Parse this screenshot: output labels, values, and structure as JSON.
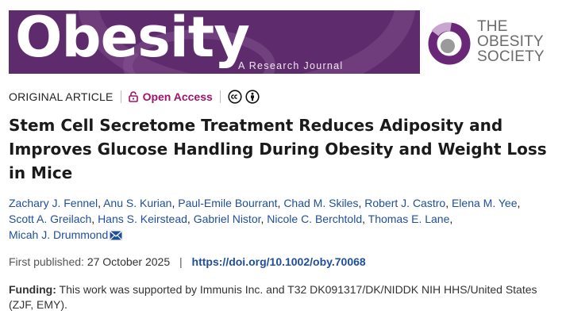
{
  "journal": {
    "name": "Obesity",
    "subtitle": "A Research Journal",
    "brand_color": "#5e2c6c"
  },
  "society": {
    "line1": "THE",
    "line2": "OBESITY",
    "line3": "SOCIETY",
    "ring_color": "#6b2777"
  },
  "article": {
    "type": "ORIGINAL ARTICLE",
    "access_label": "Open Access",
    "access_icon": "lock-open-icon",
    "license_icons": [
      "cc-icon",
      "attribution-icon"
    ],
    "title": "Stem Cell Secretome Treatment Reduces Adiposity and Improves Glucose Handling During Obesity and Weight Loss in Mice"
  },
  "authors": [
    "Zachary J. Fennel",
    "Anu S. Kurian",
    "Paul-Emile Bourrant",
    "Chad M. Skiles",
    "Robert J. Castro",
    "Elena M. Yee",
    "Scott A. Greilach",
    "Hans S. Keirstead",
    "Gabriel Nistor",
    "Nicole C. Berchtold",
    "Thomas E. Lane",
    "Micah J. Drummond"
  ],
  "corresponding_icon": "mail-icon",
  "publication": {
    "label": "First published:",
    "date": "27 October 2025",
    "separator": "|",
    "doi": "https://doi.org/10.1002/oby.70068"
  },
  "funding": {
    "label": "Funding:",
    "text": "This work was supported by Immunis Inc. and T32 DK091317/DK/NIDDK NIH HHS/United States (ZJF, EMY)."
  },
  "colors": {
    "link": "#1f4f99",
    "open_access": "#a0136a"
  }
}
